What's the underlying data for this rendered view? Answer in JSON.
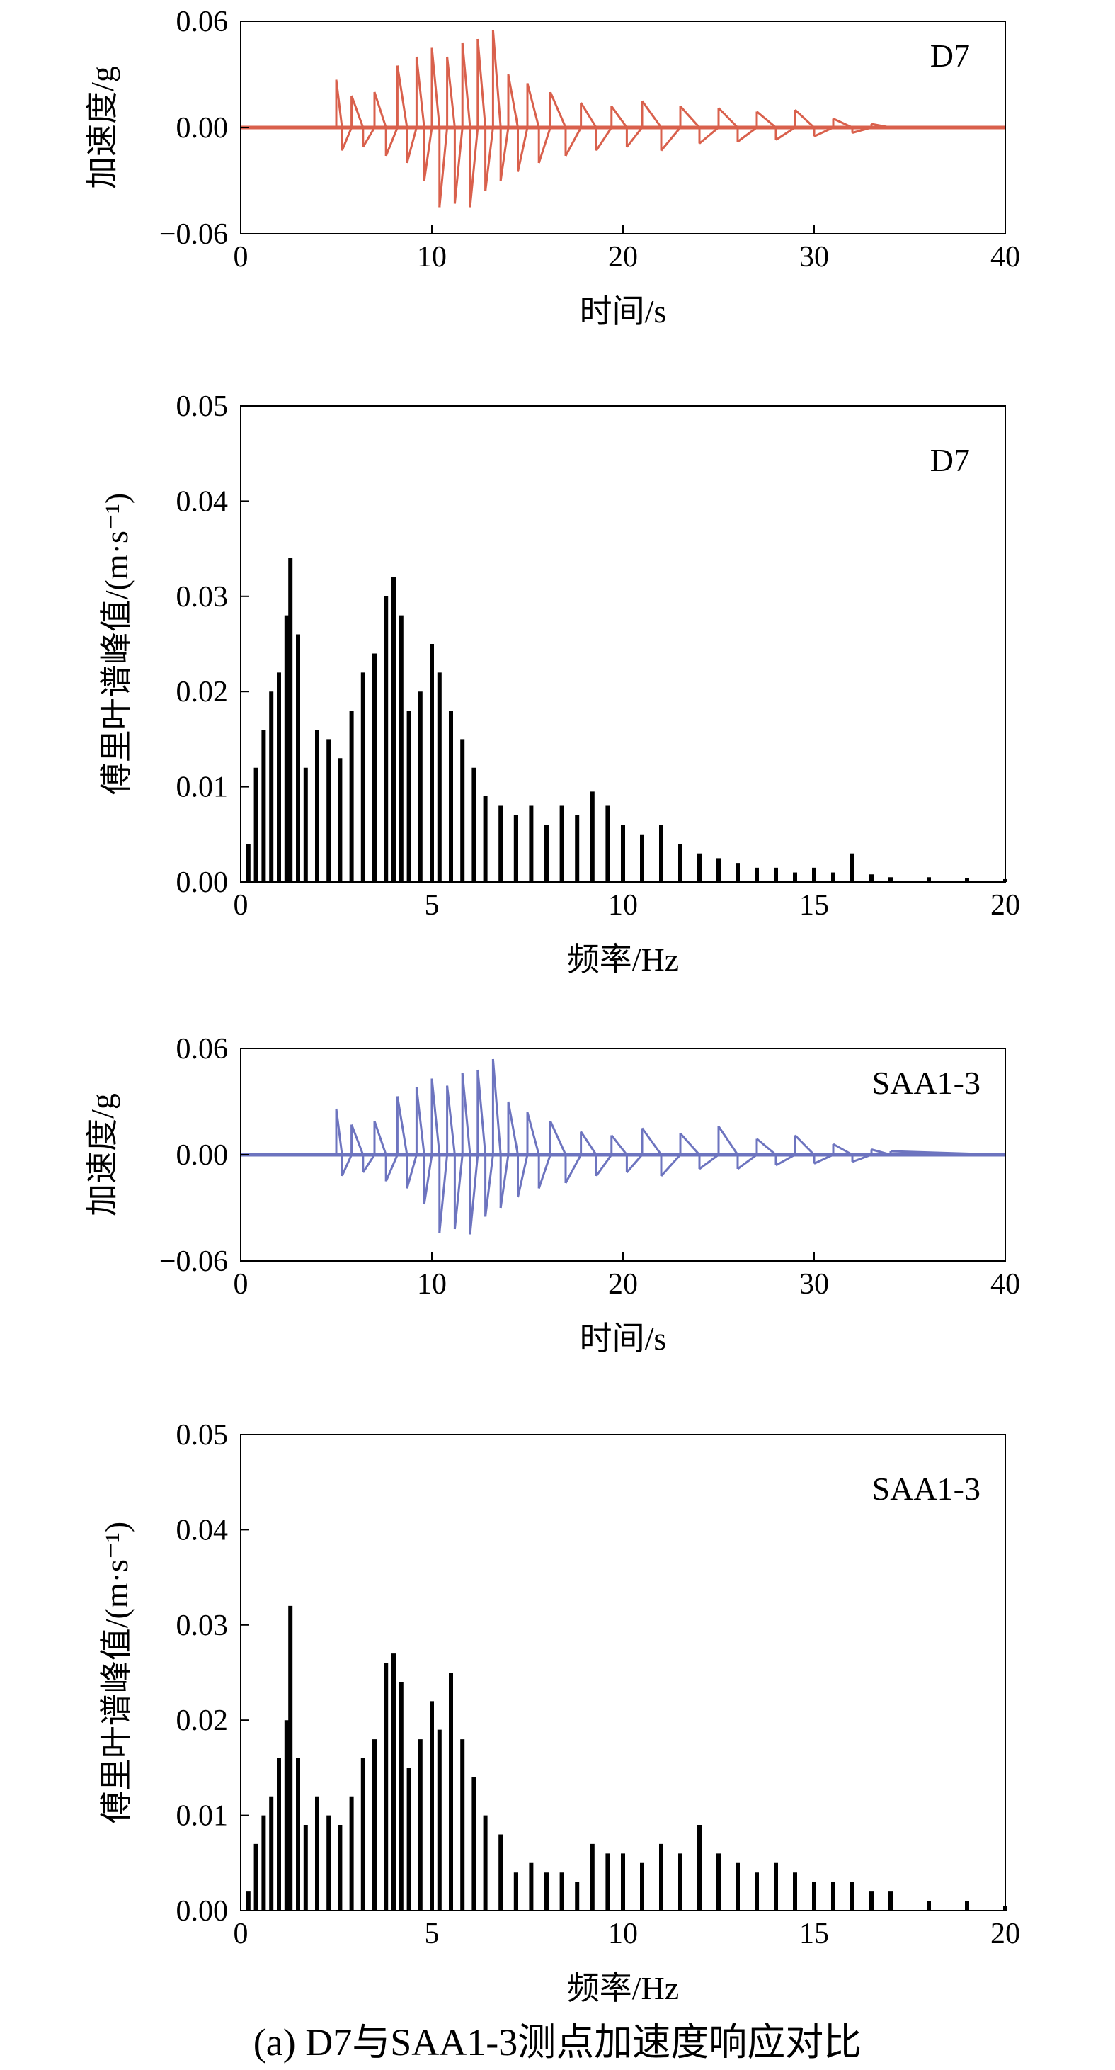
{
  "figure": {
    "caption": "(a) D7与SAA1-3测点加速度响应对比"
  },
  "chart_data": [
    {
      "type": "line",
      "panel_label": "D7",
      "xlabel": "时间/s",
      "ylabel": "加速度/g",
      "xlim": [
        0,
        40
      ],
      "ylim": [
        -0.06,
        0.06
      ],
      "xticks": [
        "0",
        "10",
        "20",
        "30",
        "40"
      ],
      "yticks": [
        "−0.06",
        "0.00",
        "0.06"
      ],
      "color": "#d9604c",
      "series": [
        {
          "x": [
            0,
            4.6,
            5.0,
            5.3,
            5.8,
            6.4,
            7.0,
            7.6,
            8.2,
            8.7,
            9.2,
            9.6,
            10.0,
            10.4,
            10.8,
            11.2,
            11.6,
            12.0,
            12.4,
            12.8,
            13.2,
            13.6,
            14.0,
            14.5,
            15.0,
            15.6,
            16.2,
            17.0,
            17.8,
            18.6,
            19.4,
            20.2,
            21.0,
            22.0,
            23.0,
            24.0,
            25.0,
            26.0,
            27.0,
            28.0,
            29.0,
            30.0,
            31.0,
            32.0,
            33.0,
            34.0,
            40.0
          ],
          "y": [
            0.0,
            0.0,
            0.027,
            -0.013,
            0.018,
            -0.011,
            0.02,
            -0.016,
            0.035,
            -0.02,
            0.04,
            -0.03,
            0.045,
            -0.045,
            0.04,
            -0.043,
            0.048,
            -0.045,
            0.05,
            -0.036,
            0.055,
            -0.03,
            0.03,
            -0.025,
            0.025,
            -0.02,
            0.02,
            -0.016,
            0.014,
            -0.013,
            0.012,
            -0.011,
            0.015,
            -0.013,
            0.012,
            -0.009,
            0.011,
            -0.008,
            0.009,
            -0.007,
            0.01,
            -0.005,
            0.005,
            -0.003,
            0.002,
            0.0,
            0.0
          ]
        }
      ]
    },
    {
      "type": "bar",
      "panel_label": "D7",
      "xlabel": "频率/Hz",
      "ylabel": "傅里叶谱峰值/(m·s⁻¹)",
      "xlim": [
        0,
        20
      ],
      "ylim": [
        0,
        0.05
      ],
      "xticks": [
        "0",
        "5",
        "10",
        "15",
        "20"
      ],
      "yticks": [
        "0.00",
        "0.01",
        "0.02",
        "0.03",
        "0.04",
        "0.05"
      ],
      "color": "#000000",
      "series": [
        {
          "x": [
            0.2,
            0.4,
            0.6,
            0.8,
            1.0,
            1.2,
            1.3,
            1.5,
            1.7,
            2.0,
            2.3,
            2.6,
            2.9,
            3.2,
            3.5,
            3.8,
            4.0,
            4.2,
            4.4,
            4.7,
            5.0,
            5.2,
            5.5,
            5.8,
            6.1,
            6.4,
            6.8,
            7.2,
            7.6,
            8.0,
            8.4,
            8.8,
            9.2,
            9.6,
            10.0,
            10.5,
            11.0,
            11.5,
            12.0,
            12.5,
            13.0,
            13.5,
            14.0,
            14.5,
            15.0,
            15.5,
            16.0,
            16.5,
            17.0,
            18.0,
            19.0,
            20.0
          ],
          "y": [
            0.004,
            0.012,
            0.016,
            0.02,
            0.022,
            0.028,
            0.034,
            0.026,
            0.012,
            0.016,
            0.015,
            0.013,
            0.018,
            0.022,
            0.024,
            0.03,
            0.032,
            0.028,
            0.018,
            0.02,
            0.025,
            0.022,
            0.018,
            0.015,
            0.012,
            0.009,
            0.008,
            0.007,
            0.008,
            0.006,
            0.008,
            0.007,
            0.0095,
            0.008,
            0.006,
            0.005,
            0.006,
            0.004,
            0.003,
            0.0025,
            0.002,
            0.0015,
            0.0015,
            0.001,
            0.0015,
            0.001,
            0.003,
            0.0008,
            0.0005,
            0.0005,
            0.0004,
            0.0003
          ]
        }
      ]
    },
    {
      "type": "line",
      "panel_label": "SAA1-3",
      "xlabel": "时间/s",
      "ylabel": "加速度/g",
      "xlim": [
        0,
        40
      ],
      "ylim": [
        -0.06,
        0.06
      ],
      "xticks": [
        "0",
        "10",
        "20",
        "30",
        "40"
      ],
      "yticks": [
        "−0.06",
        "0.00",
        "0.06"
      ],
      "color": "#6d74bf",
      "series": [
        {
          "x": [
            0,
            4.6,
            5.0,
            5.3,
            5.8,
            6.4,
            7.0,
            7.6,
            8.2,
            8.7,
            9.2,
            9.6,
            10.0,
            10.4,
            10.8,
            11.2,
            11.6,
            12.0,
            12.4,
            12.8,
            13.2,
            13.6,
            14.0,
            14.5,
            15.0,
            15.6,
            16.2,
            17.0,
            17.8,
            18.6,
            19.4,
            20.2,
            21.0,
            22.0,
            23.0,
            24.0,
            25.0,
            26.0,
            27.0,
            28.0,
            29.0,
            30.0,
            31.0,
            32.0,
            33.0,
            34.0,
            40.0
          ],
          "y": [
            0.0,
            0.0,
            0.026,
            -0.012,
            0.017,
            -0.01,
            0.019,
            -0.015,
            0.033,
            -0.019,
            0.038,
            -0.028,
            0.043,
            -0.044,
            0.039,
            -0.042,
            0.046,
            -0.045,
            0.048,
            -0.035,
            0.054,
            -0.03,
            0.03,
            -0.024,
            0.024,
            -0.019,
            0.019,
            -0.016,
            0.013,
            -0.012,
            0.011,
            -0.01,
            0.015,
            -0.012,
            0.012,
            -0.008,
            0.016,
            -0.008,
            0.009,
            -0.006,
            0.011,
            -0.005,
            0.006,
            -0.004,
            0.003,
            0.002,
            0.0
          ]
        }
      ]
    },
    {
      "type": "bar",
      "panel_label": "SAA1-3",
      "xlabel": "频率/Hz",
      "ylabel": "傅里叶谱峰值/(m·s⁻¹)",
      "xlim": [
        0,
        20
      ],
      "ylim": [
        0,
        0.05
      ],
      "xticks": [
        "0",
        "5",
        "10",
        "15",
        "20"
      ],
      "yticks": [
        "0.00",
        "0.01",
        "0.02",
        "0.03",
        "0.04",
        "0.05"
      ],
      "color": "#000000",
      "series": [
        {
          "x": [
            0.2,
            0.4,
            0.6,
            0.8,
            1.0,
            1.2,
            1.3,
            1.5,
            1.7,
            2.0,
            2.3,
            2.6,
            2.9,
            3.2,
            3.5,
            3.8,
            4.0,
            4.2,
            4.4,
            4.7,
            5.0,
            5.2,
            5.5,
            5.8,
            6.1,
            6.4,
            6.8,
            7.2,
            7.6,
            8.0,
            8.4,
            8.8,
            9.2,
            9.6,
            10.0,
            10.5,
            11.0,
            11.5,
            12.0,
            12.5,
            13.0,
            13.5,
            14.0,
            14.5,
            15.0,
            15.5,
            16.0,
            16.5,
            17.0,
            18.0,
            19.0,
            20.0
          ],
          "y": [
            0.002,
            0.007,
            0.01,
            0.012,
            0.016,
            0.02,
            0.032,
            0.016,
            0.009,
            0.012,
            0.01,
            0.009,
            0.012,
            0.016,
            0.018,
            0.026,
            0.027,
            0.024,
            0.015,
            0.018,
            0.022,
            0.019,
            0.025,
            0.018,
            0.014,
            0.01,
            0.008,
            0.004,
            0.005,
            0.004,
            0.004,
            0.003,
            0.007,
            0.006,
            0.006,
            0.005,
            0.007,
            0.006,
            0.009,
            0.006,
            0.005,
            0.004,
            0.005,
            0.004,
            0.003,
            0.003,
            0.003,
            0.002,
            0.002,
            0.001,
            0.001,
            0.0005
          ]
        }
      ]
    }
  ]
}
